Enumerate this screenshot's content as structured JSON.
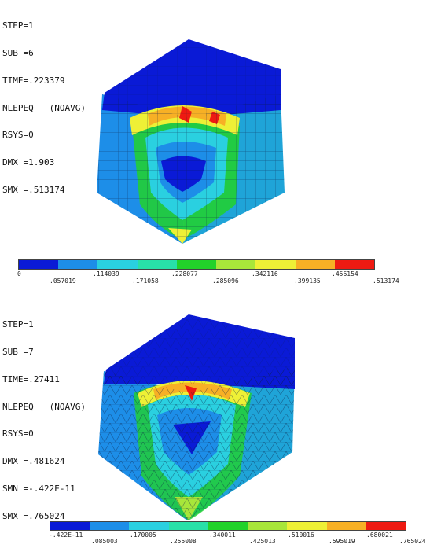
{
  "colors": [
    "#0a1ad6",
    "#1d8ee8",
    "#2ad0e0",
    "#28e0a8",
    "#22d22a",
    "#a8e63a",
    "#eef036",
    "#f7b025",
    "#ee1a12"
  ],
  "panels": [
    {
      "info": [
        "STEP=1",
        "SUB =6",
        "TIME=.223379",
        "NLEPEQ   (NOAVG)",
        "RSYS=0",
        "DMX =1.903",
        "SMX =.513174"
      ],
      "legend_low": [
        "0",
        ".114039",
        ".228077",
        ".342116",
        ".456154"
      ],
      "legend_high": [
        ".057019",
        ".171058",
        ".285096",
        ".399135",
        ".513174"
      ]
    },
    {
      "info": [
        "STEP=1",
        "SUB =7",
        "TIME=.27411",
        "NLEPEQ   (NOAVG)",
        "RSYS=0",
        "DMX =.481624",
        "SMN =-.422E-11",
        "SMX =.765024"
      ],
      "legend_low": [
        "-.422E-11",
        ".170005",
        ".340011",
        ".510016",
        ".680021"
      ],
      "legend_high": [
        ".085003",
        ".255008",
        ".425013",
        ".595019",
        ".765024"
      ]
    }
  ]
}
